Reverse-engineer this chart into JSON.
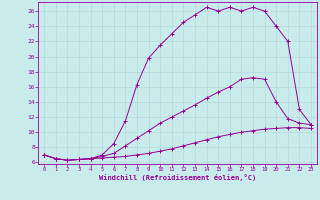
{
  "xlabel": "Windchill (Refroidissement éolien,°C)",
  "bg_color": "#c8ecec",
  "line_color": "#990099",
  "grid_color": "#b8d8d8",
  "xlim": [
    -0.5,
    23.5
  ],
  "ylim": [
    5.8,
    27.2
  ],
  "xticks": [
    0,
    1,
    2,
    3,
    4,
    5,
    6,
    7,
    8,
    9,
    10,
    11,
    12,
    13,
    14,
    15,
    16,
    17,
    18,
    19,
    20,
    21,
    22,
    23
  ],
  "yticks": [
    6,
    8,
    10,
    12,
    14,
    16,
    18,
    20,
    22,
    24,
    26
  ],
  "curve1_x": [
    0,
    1,
    2,
    3,
    4,
    5,
    6,
    7,
    8,
    9,
    10,
    11,
    12,
    13,
    14,
    15,
    16,
    17,
    18,
    19,
    20,
    21,
    22,
    23
  ],
  "curve1_y": [
    7.0,
    6.5,
    6.3,
    6.4,
    6.5,
    6.6,
    6.7,
    6.8,
    7.0,
    7.2,
    7.5,
    7.8,
    8.2,
    8.6,
    9.0,
    9.4,
    9.7,
    10.0,
    10.2,
    10.4,
    10.5,
    10.6,
    10.6,
    10.5
  ],
  "curve2_x": [
    0,
    1,
    2,
    3,
    4,
    5,
    6,
    7,
    8,
    9,
    10,
    11,
    12,
    13,
    14,
    15,
    16,
    17,
    18,
    19,
    20,
    21,
    22,
    23
  ],
  "curve2_y": [
    7.0,
    6.5,
    6.3,
    6.4,
    6.5,
    6.8,
    7.2,
    8.2,
    9.2,
    10.2,
    11.2,
    12.0,
    12.8,
    13.6,
    14.5,
    15.3,
    16.0,
    17.0,
    17.2,
    17.0,
    14.0,
    11.8,
    11.2,
    11.0
  ],
  "curve3_x": [
    0,
    1,
    2,
    3,
    4,
    5,
    6,
    7,
    8,
    9,
    10,
    11,
    12,
    13,
    14,
    15,
    16,
    17,
    18,
    19,
    20,
    21,
    22,
    23
  ],
  "curve3_y": [
    7.0,
    6.5,
    6.3,
    6.4,
    6.5,
    7.0,
    8.5,
    11.5,
    16.3,
    19.8,
    21.5,
    23.0,
    24.5,
    25.5,
    26.5,
    26.0,
    26.5,
    26.0,
    26.5,
    26.0,
    24.0,
    22.0,
    13.0,
    11.0
  ]
}
